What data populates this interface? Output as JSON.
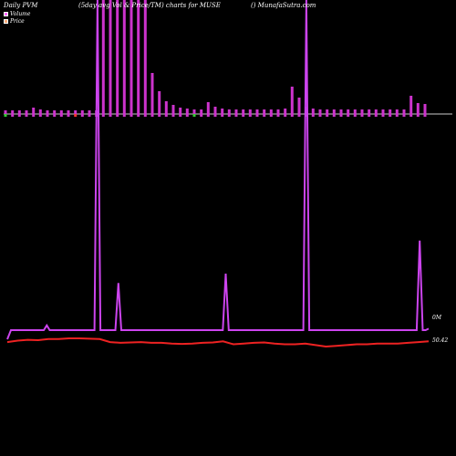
{
  "header": {
    "title_left": "Daily PVM",
    "title_mid": "(5day avg Vol & Price/TM) charts for MUSE",
    "title_right": "() MunafaSutra.com"
  },
  "legend": [
    {
      "name": "Volume",
      "color": "#ff66ff"
    },
    {
      "name": "Price",
      "color": "#ffaa77"
    }
  ],
  "colors": {
    "background": "#000000",
    "volume_bar": "#cc33cc",
    "volume_line": "#cc44ee",
    "price_line": "#ee2222",
    "baseline": "#cccccc",
    "up_tick": "#33cc33",
    "down_tick": "#ff3333"
  },
  "chart_data": {
    "type": "bar",
    "title": "Daily PVM",
    "axis_labels": {
      "volume_right": "0M",
      "price_right": "50.42"
    },
    "volume_bars": [
      4,
      4,
      4,
      4,
      7,
      5,
      4,
      4,
      4,
      4,
      4,
      4,
      4,
      4,
      125,
      125,
      125,
      125,
      125,
      125,
      125,
      45,
      25,
      14,
      10,
      7,
      6,
      5,
      5,
      13,
      8,
      6,
      5,
      5,
      5,
      5,
      5,
      5,
      5,
      5,
      6,
      30,
      18,
      8,
      6,
      5,
      5,
      5,
      5,
      5,
      5,
      5,
      5,
      5,
      5,
      5,
      5,
      5,
      20,
      12,
      11
    ],
    "volume_line": [
      0,
      0,
      0,
      0,
      0,
      0,
      0,
      0,
      0,
      0,
      0,
      0,
      10,
      0,
      0,
      0,
      0,
      0,
      0,
      0,
      0,
      0,
      0,
      0,
      0,
      0,
      0,
      0,
      0,
      200,
      0,
      0,
      0,
      0,
      0,
      0,
      100,
      0,
      0,
      0,
      0,
      0,
      0,
      0,
      0,
      0,
      0,
      0,
      0,
      0,
      0,
      0,
      0,
      0,
      0,
      0,
      0,
      0,
      0,
      0,
      0,
      0,
      0,
      0,
      0,
      0,
      0,
      0,
      0,
      0,
      0,
      0,
      120,
      0,
      0,
      0,
      0,
      0,
      0,
      0,
      0,
      0,
      0,
      0,
      0,
      0,
      0,
      0,
      0,
      0,
      0,
      0,
      0,
      0,
      0,
      0,
      0,
      0,
      0,
      300,
      0,
      0,
      0,
      0,
      0,
      0,
      0,
      0,
      0,
      0,
      0,
      0,
      0,
      0,
      0,
      0,
      0,
      0,
      0,
      0,
      0,
      0,
      0,
      0,
      0,
      0,
      0,
      0,
      0,
      0,
      0,
      0,
      0,
      0,
      0,
      0,
      0,
      190,
      0,
      0,
      3
    ],
    "price": [
      50.1,
      50.3,
      50.4,
      50.35,
      50.5,
      50.5,
      50.6,
      50.6,
      50.55,
      50.5,
      50.1,
      50.0,
      50.05,
      50.1,
      50.0,
      50.0,
      49.9,
      49.85,
      49.9,
      50.0,
      50.05,
      50.2,
      49.8,
      49.9,
      50.0,
      50.05,
      49.9,
      49.8,
      49.8,
      49.9,
      49.7,
      49.5,
      49.6,
      49.7,
      49.8,
      49.8,
      49.9,
      49.9,
      49.9,
      50.0,
      50.1,
      50.2
    ]
  }
}
